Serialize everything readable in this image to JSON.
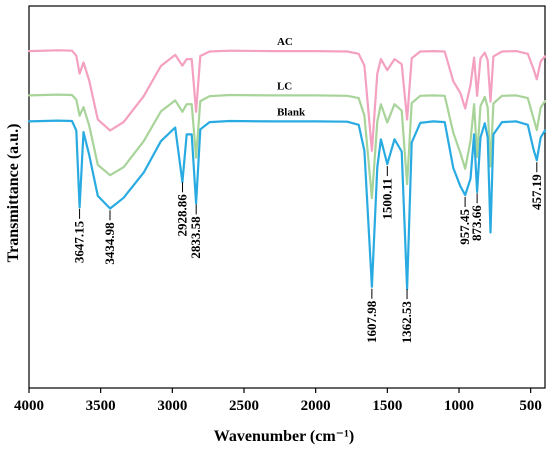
{
  "chart_data": {
    "type": "line",
    "xlabel": "Wavenumber (cm⁻¹)",
    "ylabel": "Transmittance (a.u.)",
    "xlim": [
      4000,
      400
    ],
    "x_reversed": true,
    "x_ticks": [
      4000,
      3500,
      3000,
      2500,
      2000,
      1500,
      1000,
      500
    ],
    "y_ticks_shown": false,
    "grid": false,
    "ylim": [
      0,
      100
    ],
    "series": [
      {
        "name": "AC",
        "color": "#f4a0c0",
        "x": [
          4000,
          3800,
          3700,
          3670,
          3647,
          3620,
          3580,
          3520,
          3434,
          3340,
          3200,
          3080,
          2980,
          2930,
          2900,
          2865,
          2834,
          2805,
          2740,
          2600,
          2300,
          2000,
          1780,
          1700,
          1660,
          1608,
          1570,
          1545,
          1500,
          1450,
          1400,
          1362,
          1330,
          1270,
          1180,
          1100,
          1040,
          990,
          957,
          920,
          895,
          874,
          850,
          820,
          800,
          780,
          760,
          700,
          600,
          520,
          480,
          457,
          430,
          400
        ],
        "y": [
          88.2,
          88.4,
          88.3,
          87.0,
          82.3,
          85.2,
          80.5,
          70.3,
          67.4,
          69.6,
          76.4,
          84.3,
          87.2,
          84.4,
          86.1,
          86.1,
          72.3,
          86.9,
          88.1,
          88.3,
          88.2,
          88.2,
          88.1,
          87.5,
          84.4,
          62.1,
          82.3,
          86.1,
          83.2,
          86.1,
          84.8,
          70.3,
          86.3,
          88.1,
          88.2,
          88.1,
          80.3,
          77.2,
          73.2,
          79.3,
          86.5,
          76.5,
          86.3,
          87.8,
          85.8,
          75.0,
          86.8,
          88.1,
          88.2,
          87.5,
          83.5,
          80.8,
          85.5,
          86.8
        ]
      },
      {
        "name": "LC",
        "color": "#a8d49a",
        "x": [
          4000,
          3800,
          3700,
          3670,
          3647,
          3620,
          3580,
          3520,
          3434,
          3340,
          3200,
          3080,
          2980,
          2930,
          2900,
          2865,
          2834,
          2805,
          2740,
          2600,
          2300,
          2000,
          1780,
          1700,
          1660,
          1608,
          1570,
          1545,
          1500,
          1450,
          1400,
          1362,
          1330,
          1270,
          1180,
          1100,
          1040,
          990,
          957,
          920,
          895,
          874,
          850,
          820,
          800,
          780,
          760,
          700,
          600,
          520,
          480,
          457,
          430,
          400
        ],
        "y": [
          76.6,
          76.8,
          76.7,
          75.5,
          71.3,
          73.5,
          68.7,
          58.4,
          55.7,
          57.8,
          64.6,
          72.4,
          75.3,
          72.3,
          74.3,
          74.3,
          60.3,
          75.1,
          76.4,
          76.7,
          76.6,
          76.6,
          76.5,
          75.9,
          71.3,
          49.7,
          69.7,
          74.3,
          69.5,
          74.3,
          72.6,
          53.4,
          74.6,
          76.5,
          76.6,
          76.5,
          66.8,
          61.5,
          57.4,
          64.7,
          74.3,
          60.5,
          73.8,
          76.2,
          73.4,
          58.0,
          74.5,
          76.5,
          76.6,
          75.9,
          70.6,
          67.5,
          73.4,
          75.1
        ]
      },
      {
        "name": "Blank",
        "color": "#29abe2",
        "x": [
          4000,
          3800,
          3700,
          3670,
          3647,
          3620,
          3580,
          3520,
          3434,
          3340,
          3200,
          3080,
          2980,
          2930,
          2900,
          2865,
          2834,
          2805,
          2740,
          2600,
          2300,
          2000,
          1780,
          1700,
          1660,
          1608,
          1570,
          1545,
          1500,
          1450,
          1400,
          1362,
          1330,
          1270,
          1180,
          1100,
          1040,
          990,
          957,
          920,
          895,
          874,
          850,
          820,
          800,
          780,
          760,
          700,
          600,
          520,
          480,
          457,
          430,
          400
        ],
        "y": [
          69.8,
          70.0,
          69.9,
          67.4,
          47.3,
          67.0,
          61.0,
          50.3,
          47.0,
          49.8,
          56.4,
          64.6,
          68.2,
          53.9,
          66.4,
          66.4,
          48.3,
          67.7,
          69.6,
          69.9,
          69.8,
          69.8,
          69.7,
          68.9,
          62.1,
          26.5,
          57.8,
          65.1,
          58.6,
          65.1,
          61.9,
          25.9,
          64.3,
          69.4,
          69.8,
          69.6,
          57.6,
          52.8,
          50.5,
          54.8,
          66.4,
          51.3,
          65.6,
          69.3,
          65.6,
          40.7,
          66.4,
          69.6,
          69.8,
          68.9,
          62.5,
          59.6,
          65.6,
          67.4
        ]
      }
    ],
    "annotations": [
      {
        "text": "3647.15",
        "x": 3647.15,
        "series": "Blank"
      },
      {
        "text": "3434.98",
        "x": 3434.98,
        "series": "Blank"
      },
      {
        "text": "2928.86",
        "x": 2928.86,
        "series": "Blank"
      },
      {
        "text": "2833.58",
        "x": 2833.58,
        "series": "Blank"
      },
      {
        "text": "1607.98",
        "x": 1607.98,
        "series": "Blank"
      },
      {
        "text": "1500.11",
        "x": 1500.11,
        "series": "Blank"
      },
      {
        "text": "1362.53",
        "x": 1362.53,
        "series": "Blank"
      },
      {
        "text": "957.45",
        "x": 957.45,
        "series": "Blank"
      },
      {
        "text": "873.66",
        "x": 873.66,
        "series": "Blank"
      },
      {
        "text": "457.19",
        "x": 457.19,
        "series": "Blank"
      }
    ]
  }
}
